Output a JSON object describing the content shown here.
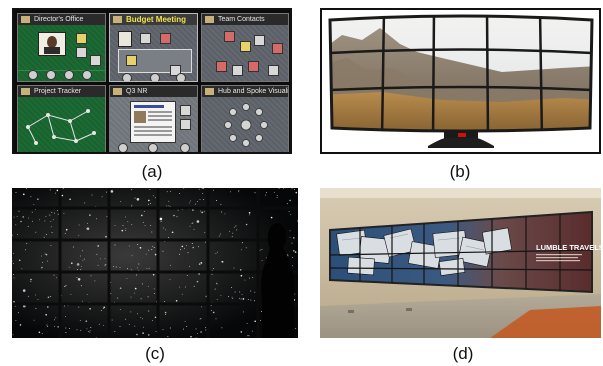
{
  "captions": {
    "a": "(a)",
    "b": "(b)",
    "c": "(c)",
    "d": "(d)"
  },
  "panel_a": {
    "windows": [
      {
        "title": "Director's Office",
        "style": "green",
        "title_color": "#e8e8e8"
      },
      {
        "title": "Budget Meeting",
        "style": "grey",
        "title_color": "#f2e24a"
      },
      {
        "title": "Team Contacts",
        "style": "grey",
        "title_color": "#e8e8e8"
      },
      {
        "title": "Project Tracker",
        "style": "green",
        "title_color": "#e8e8e8"
      },
      {
        "title": "Q3 NR",
        "style": "lgrey",
        "title_color": "#e8e8e8"
      },
      {
        "title": "Hub and Spoke Visualizer",
        "style": "grey",
        "title_color": "#e8e8e8"
      }
    ]
  },
  "panel_b": {
    "badge_color": "#cc1111"
  },
  "panel_d": {
    "title": "LUMBLE TRAVELS"
  }
}
